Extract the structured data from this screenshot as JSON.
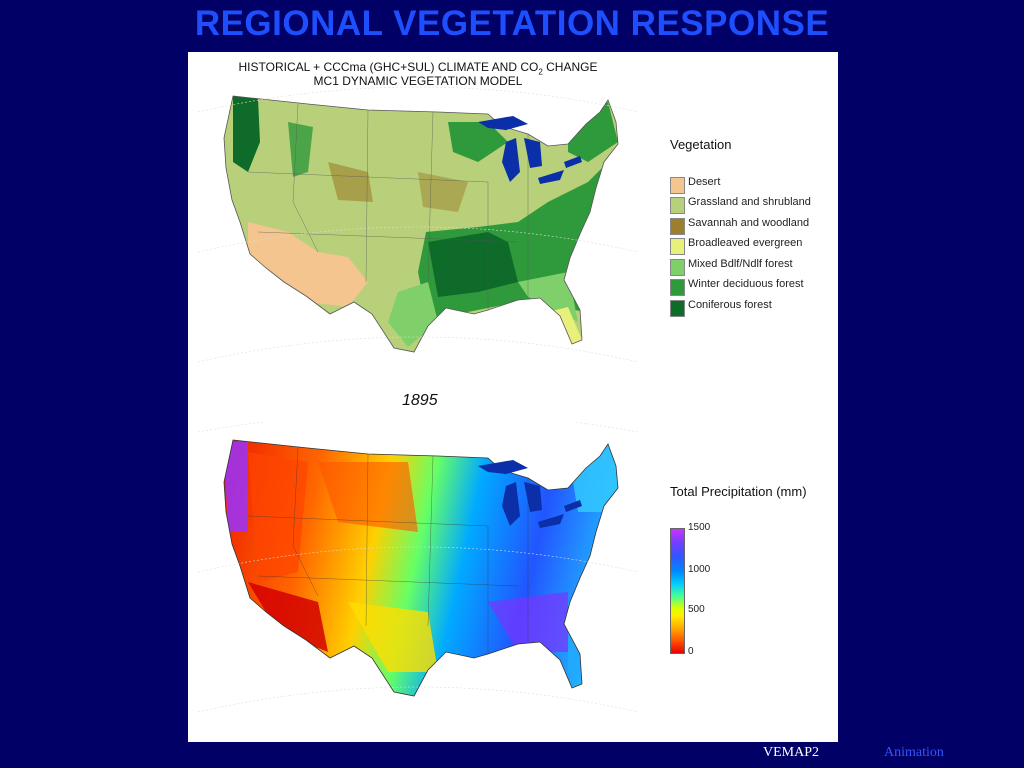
{
  "slide": {
    "title": "REGIONAL VEGETATION RESPONSE"
  },
  "figure": {
    "title_line1": "HISTORICAL + CCCma (GHC+SUL) CLIMATE AND CO",
    "title_subscript": "2",
    "title_line1_end": " CHANGE",
    "title_line2": "MC1 DYNAMIC VEGETATION MODEL",
    "year": "1895"
  },
  "vegetation_legend": {
    "title": "Vegetation",
    "items": [
      {
        "label": "Desert",
        "color": "#f4c58f"
      },
      {
        "label": "Grassland and shrubland",
        "color": "#b9d07a"
      },
      {
        "label": "Savannah and woodland",
        "color": "#9c7f2c"
      },
      {
        "label": "Broadleaved evergreen",
        "color": "#e7f07a"
      },
      {
        "label": "Mixed Bdlf/Ndlf forest",
        "color": "#7fcf6a"
      },
      {
        "label": "Winter deciduous forest",
        "color": "#2f9a3c"
      },
      {
        "label": "Coniferous forest",
        "color": "#0e6b2a"
      }
    ]
  },
  "precip_legend": {
    "title": "Total Precipitation (mm)",
    "ticks": [
      "1500",
      "1000",
      "500",
      "0"
    ]
  },
  "footer": {
    "vemap": "VEMAP2",
    "animation_link": "Animation"
  },
  "colors": {
    "background": "#000066",
    "title": "#1d4fff",
    "footer_link": "#3355ff",
    "lakes": "#0a2fa8"
  }
}
